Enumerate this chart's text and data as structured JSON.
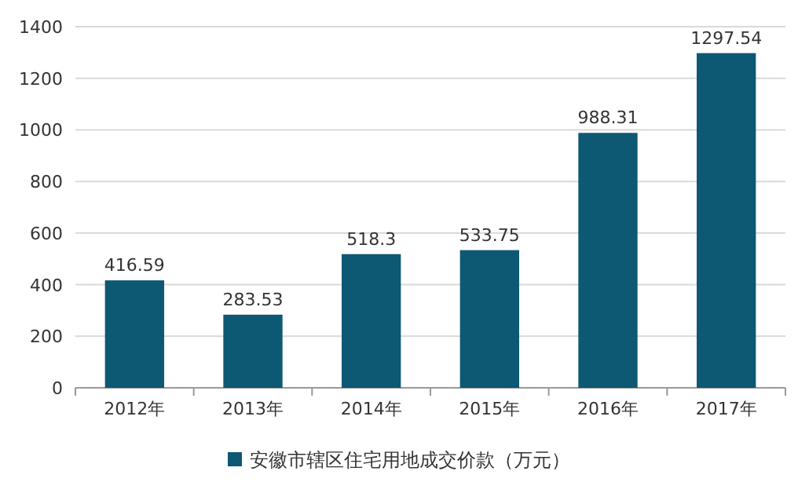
{
  "chart_data": {
    "type": "bar",
    "categories": [
      "2012年",
      "2013年",
      "2014年",
      "2015年",
      "2016年",
      "2017年"
    ],
    "series": [
      {
        "name": "安徽市辖区住宅用地成交价款（万元）",
        "color": "#0d5872",
        "values": [
          416.59,
          283.53,
          518.3,
          533.75,
          988.31,
          1297.54
        ]
      }
    ],
    "ylim": [
      0,
      1400
    ],
    "yticks": [
      0,
      200,
      400,
      600,
      800,
      1000,
      1200,
      1400
    ],
    "grid": "y",
    "legend": "bottom",
    "data_labels": true
  }
}
